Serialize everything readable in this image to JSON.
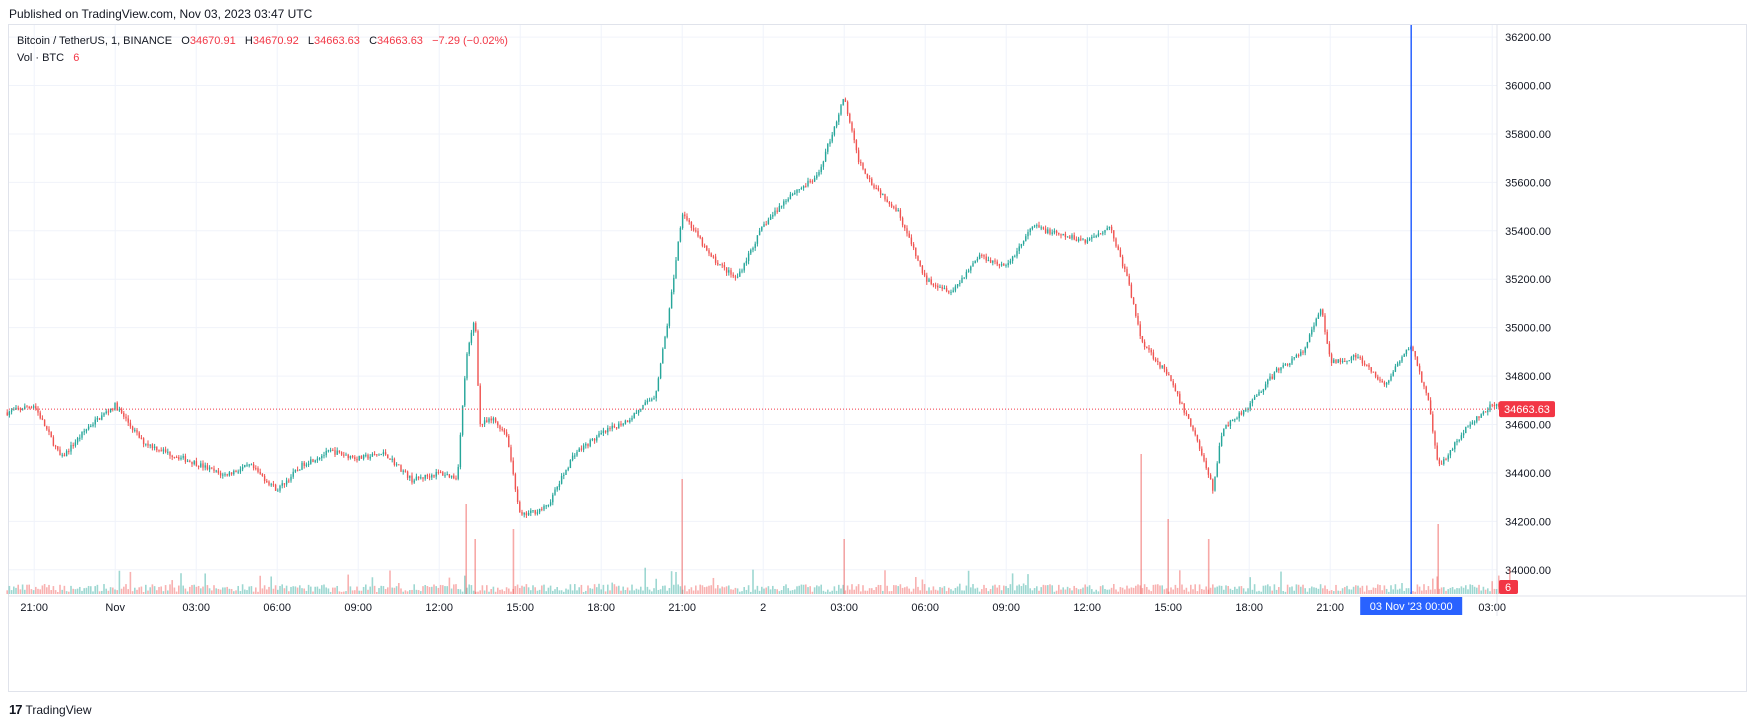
{
  "header": {
    "published": "Published on TradingView.com, Nov 03, 2023 03:47 UTC"
  },
  "legend": {
    "symbol": "Bitcoin / TetherUS, 1, BINANCE",
    "o_label": "O",
    "o_value": "34670.91",
    "h_label": "H",
    "h_value": "34670.92",
    "l_label": "L",
    "l_value": "34663.63",
    "c_label": "C",
    "c_value": "34663.63",
    "change": "−7.29 (−0.02%)",
    "vol_label": "Vol · BTC",
    "vol_value": "6"
  },
  "footer": {
    "brand": "TradingView",
    "logo_glyph": "17"
  },
  "colors": {
    "up": "#26a69a",
    "down": "#ef5350",
    "crosshair": "#2962ff",
    "price_tag": "#f23645",
    "grid": "#f0f3fa"
  },
  "chart_data": {
    "type": "candlestick",
    "title": "Bitcoin / TetherUS, 1, BINANCE",
    "ylim": [
      33900,
      36250
    ],
    "y_ticks": [
      "36200.00",
      "36000.00",
      "35800.00",
      "35600.00",
      "35400.00",
      "35200.00",
      "35000.00",
      "34800.00",
      "34600.00",
      "34400.00",
      "34200.00",
      "34000.00"
    ],
    "x_ticks": [
      "21:00",
      "Nov",
      "03:00",
      "06:00",
      "09:00",
      "12:00",
      "15:00",
      "18:00",
      "21:00",
      "2",
      "03:00",
      "06:00",
      "09:00",
      "12:00",
      "15:00",
      "18:00",
      "21:00",
      "03:00"
    ],
    "last_price": "34663.63",
    "last_volume": "6",
    "crosshair_label": "03 Nov '23   00:00",
    "price_path": [
      [
        "2023-10-31 20:00",
        34650
      ],
      [
        "2023-10-31 21:00",
        34680
      ],
      [
        "2023-10-31 22:00",
        34460
      ],
      [
        "2023-10-31 23:00",
        34590
      ],
      [
        "2023-11-01 00:00",
        34680
      ],
      [
        "2023-11-01 01:00",
        34530
      ],
      [
        "2023-11-01 02:00",
        34480
      ],
      [
        "2023-11-01 03:00",
        34440
      ],
      [
        "2023-11-01 04:00",
        34390
      ],
      [
        "2023-11-01 05:00",
        34430
      ],
      [
        "2023-11-01 06:00",
        34330
      ],
      [
        "2023-11-01 07:00",
        34440
      ],
      [
        "2023-11-01 08:00",
        34490
      ],
      [
        "2023-11-01 09:00",
        34460
      ],
      [
        "2023-11-01 10:00",
        34480
      ],
      [
        "2023-11-01 11:00",
        34370
      ],
      [
        "2023-11-01 12:00",
        34400
      ],
      [
        "2023-11-01 12:40",
        34380
      ],
      [
        "2023-11-01 13:00",
        34870
      ],
      [
        "2023-11-01 13:20",
        35050
      ],
      [
        "2023-11-01 13:30",
        34600
      ],
      [
        "2023-11-01 14:00",
        34620
      ],
      [
        "2023-11-01 14:30",
        34560
      ],
      [
        "2023-11-01 15:00",
        34220
      ],
      [
        "2023-11-01 16:00",
        34260
      ],
      [
        "2023-11-01 17:00",
        34480
      ],
      [
        "2023-11-01 18:00",
        34560
      ],
      [
        "2023-11-01 19:00",
        34620
      ],
      [
        "2023-11-01 20:00",
        34720
      ],
      [
        "2023-11-01 20:30",
        35050
      ],
      [
        "2023-11-01 21:00",
        35480
      ],
      [
        "2023-11-01 22:00",
        35300
      ],
      [
        "2023-11-01 23:00",
        35200
      ],
      [
        "2023-11-02 00:00",
        35420
      ],
      [
        "2023-11-02 01:00",
        35550
      ],
      [
        "2023-11-02 02:00",
        35620
      ],
      [
        "2023-11-02 03:00",
        35950
      ],
      [
        "2023-11-02 03:30",
        35700
      ],
      [
        "2023-11-02 04:00",
        35600
      ],
      [
        "2023-11-02 05:00",
        35480
      ],
      [
        "2023-11-02 06:00",
        35200
      ],
      [
        "2023-11-02 07:00",
        35150
      ],
      [
        "2023-11-02 08:00",
        35300
      ],
      [
        "2023-11-02 09:00",
        35250
      ],
      [
        "2023-11-02 10:00",
        35420
      ],
      [
        "2023-11-02 11:00",
        35380
      ],
      [
        "2023-11-02 12:00",
        35360
      ],
      [
        "2023-11-02 12:50",
        35420
      ],
      [
        "2023-11-02 13:30",
        35200
      ],
      [
        "2023-11-02 14:00",
        34950
      ],
      [
        "2023-11-02 15:00",
        34800
      ],
      [
        "2023-11-02 16:00",
        34560
      ],
      [
        "2023-11-02 16:40",
        34330
      ],
      [
        "2023-11-02 17:00",
        34580
      ],
      [
        "2023-11-02 18:00",
        34680
      ],
      [
        "2023-11-02 19:00",
        34820
      ],
      [
        "2023-11-02 20:00",
        34900
      ],
      [
        "2023-11-02 20:40",
        35080
      ],
      [
        "2023-11-02 21:00",
        34860
      ],
      [
        "2023-11-02 22:00",
        34880
      ],
      [
        "2023-11-02 23:00",
        34760
      ],
      [
        "2023-11-03 00:00",
        34930
      ],
      [
        "2023-11-03 00:40",
        34680
      ],
      [
        "2023-11-03 01:00",
        34420
      ],
      [
        "2023-11-03 02:00",
        34580
      ],
      [
        "2023-11-03 03:00",
        34680
      ],
      [
        "2023-11-03 03:47",
        34664
      ]
    ],
    "volume_spikes": [
      [
        "2023-11-01 13:00",
        90
      ],
      [
        "2023-11-01 13:20",
        55
      ],
      [
        "2023-11-01 14:45",
        65
      ],
      [
        "2023-11-01 21:00",
        115
      ],
      [
        "2023-11-02 03:00",
        55
      ],
      [
        "2023-11-02 14:00",
        140
      ],
      [
        "2023-11-02 15:00",
        75
      ],
      [
        "2023-11-02 16:30",
        55
      ],
      [
        "2023-11-03 01:00",
        70
      ]
    ]
  }
}
